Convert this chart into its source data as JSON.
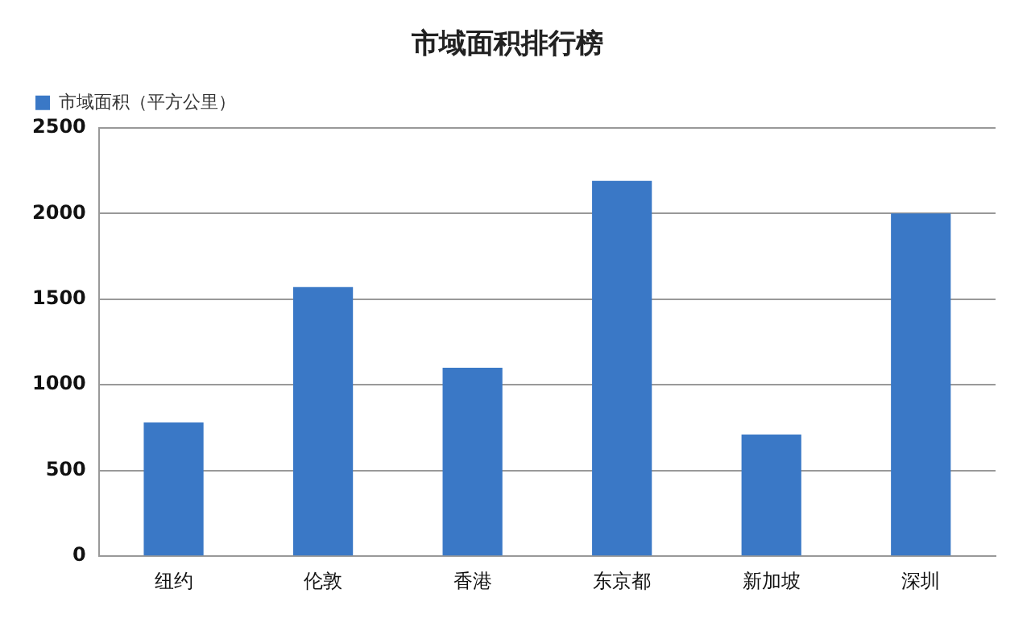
{
  "chart_data": {
    "type": "bar",
    "title": "市域面积排行榜",
    "categories": [
      "纽约",
      "伦敦",
      "香港",
      "东京都",
      "新加坡",
      "深圳"
    ],
    "series": [
      {
        "name": "市域面积（平方公里）",
        "color": "#3a78c6",
        "values": [
          780,
          1570,
          1100,
          2190,
          710,
          2000
        ]
      }
    ],
    "ylim": [
      0,
      2500
    ],
    "yticks": [
      0,
      500,
      1000,
      1500,
      2000,
      2500
    ],
    "grid": "y",
    "legend": "top left"
  }
}
